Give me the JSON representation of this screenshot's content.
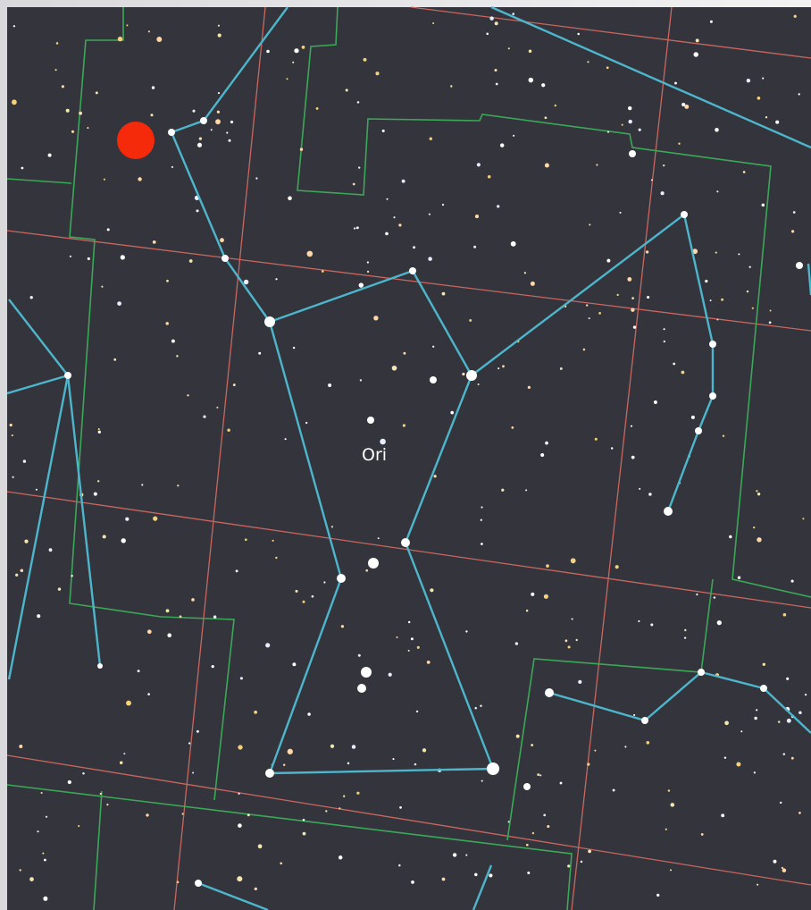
{
  "constellation": {
    "label": "Ori"
  }
}
